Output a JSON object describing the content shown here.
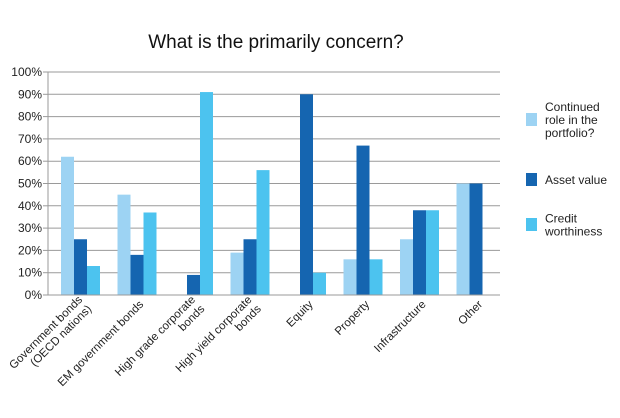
{
  "chart_data": {
    "type": "bar",
    "title": "What is the primarily concern?",
    "xlabel": "",
    "ylabel": "",
    "ylim": [
      0,
      100
    ],
    "yticks": [
      "0%",
      "10%",
      "20%",
      "30%",
      "40%",
      "50%",
      "60%",
      "70%",
      "80%",
      "90%",
      "100%"
    ],
    "grid": true,
    "legend_position": "right",
    "categories": [
      [
        "Government bonds",
        "(OECD nations)"
      ],
      [
        "EM government bonds"
      ],
      [
        "High grade corporate",
        "bonds"
      ],
      [
        "High yield corporate",
        "bonds"
      ],
      [
        "Equity"
      ],
      [
        "Property"
      ],
      [
        "Infrastructure"
      ],
      [
        "Other"
      ]
    ],
    "series": [
      {
        "name": [
          "Continued",
          "role in the",
          "portfolio?"
        ],
        "color": "#9dd3f3",
        "values": [
          62,
          45,
          0,
          19,
          0,
          16,
          25,
          50
        ]
      },
      {
        "name": [
          "Asset value"
        ],
        "color": "#1565b0",
        "values": [
          25,
          18,
          9,
          25,
          90,
          67,
          38,
          50
        ]
      },
      {
        "name": [
          "Credit",
          "worthiness"
        ],
        "color": "#4cc3ef",
        "values": [
          13,
          37,
          91,
          56,
          10,
          16,
          38,
          null
        ]
      }
    ]
  }
}
